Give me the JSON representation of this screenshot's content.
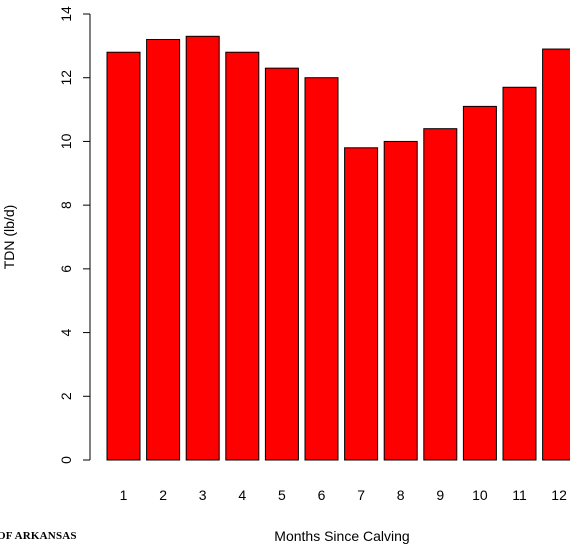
{
  "footer": {
    "logo_text": "OF ARKANSAS"
  },
  "chart_data": {
    "type": "bar",
    "categories": [
      "1",
      "2",
      "3",
      "4",
      "5",
      "6",
      "7",
      "8",
      "9",
      "10",
      "11",
      "12"
    ],
    "values": [
      12.8,
      13.2,
      13.3,
      12.8,
      12.3,
      12.0,
      9.8,
      10.0,
      10.4,
      11.1,
      11.7,
      12.9
    ],
    "xlabel": "Months Since Calving",
    "ylabel": "TDN (lb/d)",
    "ylim": [
      0,
      14
    ],
    "yticks": [
      0,
      2,
      4,
      6,
      8,
      10,
      12,
      14
    ],
    "grid": false,
    "legend": "none",
    "bar_color": "#ff0000",
    "bar_edge_color": "#000000"
  }
}
